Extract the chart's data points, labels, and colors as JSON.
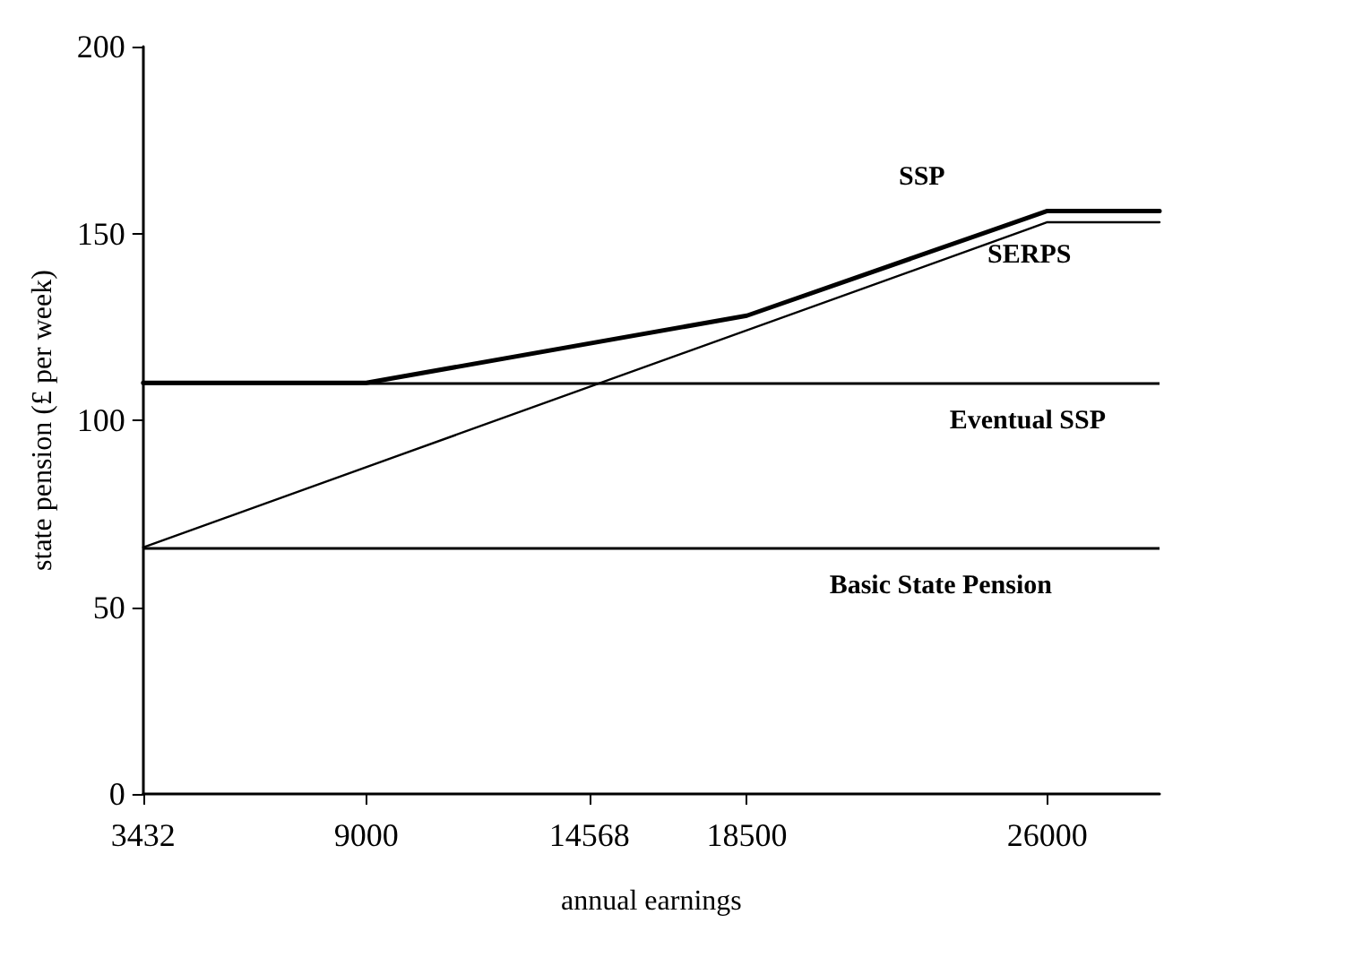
{
  "chart_data": {
    "type": "line",
    "xlabel": "annual earnings",
    "ylabel": "state pension (£ per week)",
    "xlim": [
      3432,
      28800
    ],
    "xticks": [
      3432,
      9000,
      14568,
      18500,
      26000
    ],
    "ylim": [
      0,
      200
    ],
    "yticks": [
      0,
      50,
      100,
      150,
      200
    ],
    "grid": false,
    "legend": false,
    "marker": "none",
    "line_style": "solid",
    "series": [
      {
        "name": "SSP",
        "color": "#000000",
        "x": [
          3432,
          9000,
          18500,
          26000,
          28800
        ],
        "values": [
          110,
          110,
          128,
          156,
          156
        ]
      },
      {
        "name": "SERPS",
        "color": "#000000",
        "x": [
          3432,
          26000,
          28800
        ],
        "values": [
          66,
          153,
          153
        ]
      }
    ],
    "ref_lines": [
      {
        "axis": "y",
        "value": 110,
        "label": "Eventual SSP",
        "color": "#000000"
      },
      {
        "axis": "y",
        "value": 66,
        "label": "Basic State Pension",
        "color": "#000000"
      }
    ]
  }
}
